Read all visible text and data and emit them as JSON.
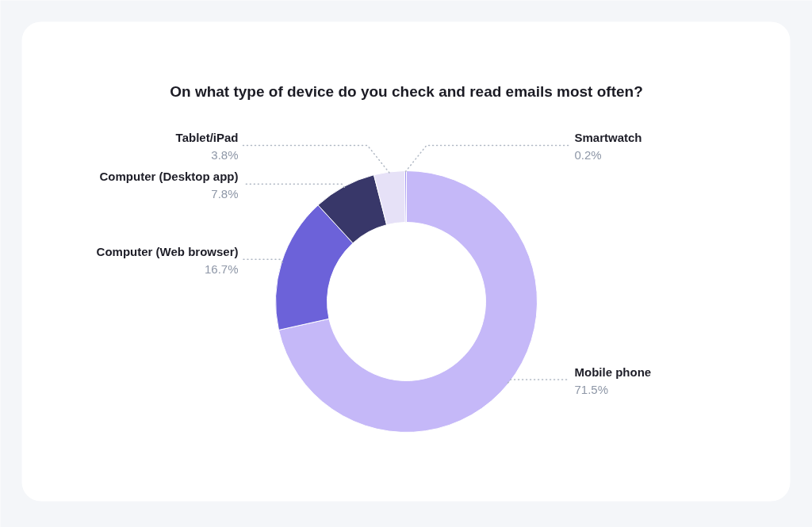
{
  "chart_data": {
    "type": "donut",
    "title": "On what type of device do you check and read emails most often?",
    "categories": [
      "Mobile phone",
      "Computer (Web browser)",
      "Computer (Desktop app)",
      "Tablet/iPad",
      "Smartwatch"
    ],
    "values": [
      71.5,
      16.7,
      7.8,
      3.8,
      0.2
    ],
    "colors": [
      "#c5b8f8",
      "#6c62d9",
      "#383769",
      "#e6e1f7",
      "#9f90f2"
    ],
    "value_labels": [
      "71.5%",
      "16.7%",
      "7.8%",
      "3.8%",
      "0.2%"
    ]
  }
}
